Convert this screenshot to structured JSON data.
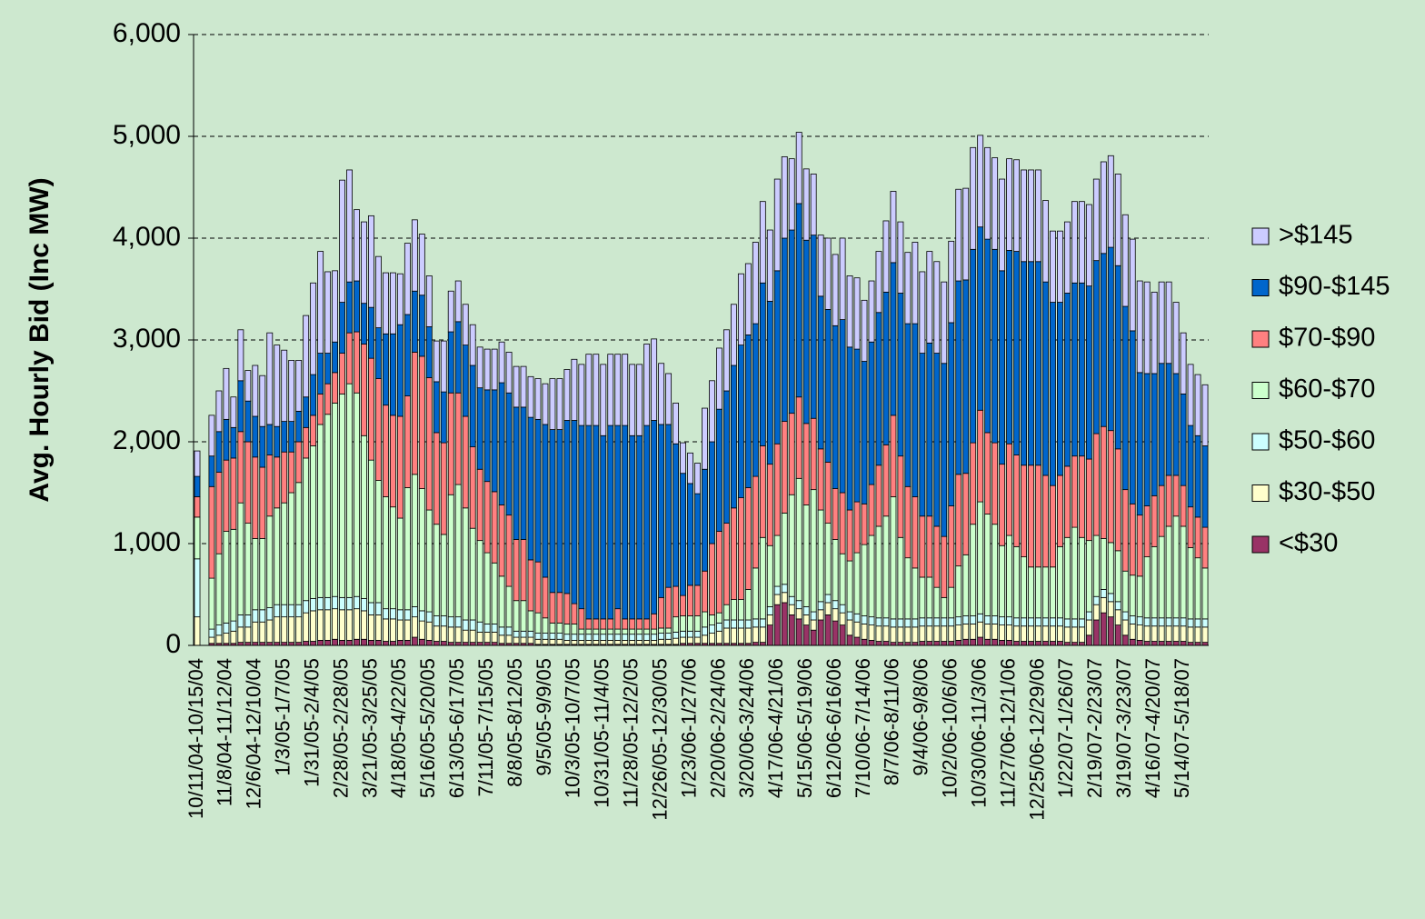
{
  "chart_data": {
    "type": "stacked_bar",
    "y_label": "Avg. Hourly Bid (Inc MW)",
    "ylim": [
      0,
      6000
    ],
    "yticks": [
      0,
      {
        "value": 1000,
        "label": "1,000"
      },
      {
        "value": 2000,
        "label": "2,000"
      },
      {
        "value": 3000,
        "label": "3,000"
      },
      {
        "value": 4000,
        "label": "4,000"
      },
      {
        "value": 5000,
        "label": "5,000"
      },
      {
        "value": 6000,
        "label": "6,000"
      }
    ],
    "grid": true,
    "legend": "right",
    "categories": [
      "10/11/04-10/15/04",
      null,
      null,
      null,
      "11/8/04-11/12/04",
      null,
      null,
      null,
      "12/6/04-12/10/04",
      null,
      null,
      null,
      "1/3/05-1/7/05",
      null,
      null,
      null,
      "1/31/05-2/4/05",
      null,
      null,
      null,
      "2/28/05-2/28/05",
      null,
      null,
      null,
      "3/21/05-3/25/05",
      null,
      null,
      null,
      "4/18/05-4/22/05",
      null,
      null,
      null,
      "5/16/05-5/20/05",
      null,
      null,
      null,
      "6/13/05-6/17/05",
      null,
      null,
      null,
      "7/11/05-7/15/05",
      null,
      null,
      null,
      "8/8/05-8/12/05",
      null,
      null,
      null,
      "9/5/05-9/9/05",
      null,
      null,
      null,
      "10/3/05-10/7/05",
      null,
      null,
      null,
      "10/31/05-11/4/05",
      null,
      null,
      null,
      "11/28/05-12/2/05",
      null,
      null,
      null,
      "12/26/05-12/30/05",
      null,
      null,
      null,
      "1/23/06-1/27/06",
      null,
      null,
      null,
      "2/20/06-2/24/06",
      null,
      null,
      null,
      "3/20/06-3/24/06",
      null,
      null,
      null,
      "4/17/06-4/21/06",
      null,
      null,
      null,
      "5/15/06-5/19/06",
      null,
      null,
      null,
      "6/12/06-6/16/06",
      null,
      null,
      null,
      "7/10/06-7/14/06",
      null,
      null,
      null,
      "8/7/06-8/11/06",
      null,
      null,
      null,
      "9/4/06-9/8/06",
      null,
      null,
      null,
      "10/2/06-10/6/06",
      null,
      null,
      null,
      "10/30/06-11/3/06",
      null,
      null,
      null,
      "11/27/06-12/1/06",
      null,
      null,
      null,
      "12/25/06-12/29/06",
      null,
      null,
      null,
      "1/22/07-1/26/07",
      null,
      null,
      null,
      "2/19/07-2/23/07",
      null,
      null,
      null,
      "3/19/07-3/23/07",
      null,
      null,
      null,
      "4/16/07-4/20/07",
      null,
      null,
      null,
      "5/14/07-5/18/07",
      null,
      null,
      null
    ],
    "series": [
      {
        "name": "<$30",
        "color": "#993366",
        "values": [
          0,
          0,
          20,
          20,
          20,
          20,
          30,
          30,
          30,
          30,
          30,
          30,
          30,
          30,
          30,
          40,
          40,
          50,
          50,
          60,
          50,
          50,
          60,
          60,
          50,
          50,
          40,
          40,
          50,
          50,
          80,
          60,
          50,
          40,
          40,
          30,
          30,
          30,
          30,
          30,
          30,
          30,
          20,
          20,
          20,
          20,
          20,
          10,
          10,
          10,
          10,
          10,
          10,
          10,
          10,
          10,
          10,
          10,
          10,
          10,
          10,
          10,
          10,
          10,
          10,
          10,
          10,
          20,
          20,
          20,
          20,
          20,
          20,
          20,
          20,
          20,
          20,
          30,
          30,
          200,
          400,
          420,
          300,
          260,
          200,
          150,
          250,
          300,
          240,
          200,
          100,
          80,
          60,
          50,
          40,
          40,
          30,
          30,
          30,
          30,
          40,
          40,
          40,
          40,
          40,
          50,
          60,
          60,
          80,
          60,
          60,
          50,
          50,
          40,
          40,
          40,
          40,
          40,
          40,
          40,
          30,
          30,
          30,
          100,
          250,
          320,
          280,
          200,
          100,
          60,
          50,
          40,
          40,
          40,
          40,
          40,
          40,
          30,
          30,
          30
        ]
      },
      {
        "name": "$30-$50",
        "color": "#ffffcc",
        "values": [
          280,
          0,
          60,
          80,
          100,
          120,
          150,
          150,
          200,
          200,
          220,
          250,
          250,
          250,
          250,
          280,
          300,
          300,
          300,
          300,
          300,
          300,
          300,
          280,
          250,
          250,
          220,
          220,
          200,
          200,
          200,
          180,
          180,
          150,
          150,
          150,
          150,
          120,
          120,
          100,
          100,
          100,
          80,
          80,
          60,
          60,
          60,
          50,
          50,
          50,
          50,
          40,
          40,
          40,
          40,
          40,
          40,
          40,
          40,
          40,
          40,
          40,
          40,
          40,
          50,
          50,
          60,
          60,
          60,
          60,
          80,
          100,
          120,
          150,
          150,
          150,
          150,
          150,
          150,
          100,
          100,
          100,
          100,
          100,
          100,
          100,
          100,
          120,
          120,
          120,
          150,
          150,
          150,
          150,
          150,
          150,
          150,
          150,
          150,
          150,
          150,
          150,
          150,
          150,
          150,
          150,
          150,
          150,
          150,
          150,
          150,
          150,
          150,
          150,
          150,
          150,
          150,
          150,
          150,
          150,
          150,
          150,
          150,
          150,
          150,
          150,
          150,
          150,
          150,
          150,
          150,
          150,
          150,
          150,
          150,
          150,
          150,
          150,
          150,
          150
        ]
      },
      {
        "name": "$50-$60",
        "color": "#ccffff",
        "values": [
          570,
          0,
          80,
          100,
          100,
          100,
          120,
          120,
          120,
          120,
          120,
          120,
          120,
          120,
          120,
          120,
          120,
          120,
          120,
          120,
          120,
          120,
          120,
          120,
          120,
          120,
          100,
          100,
          100,
          100,
          100,
          100,
          100,
          100,
          100,
          100,
          100,
          100,
          100,
          100,
          80,
          80,
          80,
          80,
          60,
          60,
          60,
          60,
          60,
          60,
          60,
          60,
          60,
          60,
          60,
          60,
          60,
          60,
          60,
          60,
          60,
          60,
          60,
          60,
          60,
          60,
          60,
          60,
          60,
          60,
          80,
          80,
          80,
          80,
          80,
          80,
          80,
          80,
          80,
          80,
          80,
          80,
          80,
          80,
          80,
          80,
          80,
          80,
          80,
          80,
          80,
          80,
          80,
          80,
          80,
          80,
          80,
          80,
          80,
          80,
          80,
          80,
          80,
          80,
          80,
          80,
          80,
          80,
          80,
          80,
          80,
          80,
          80,
          80,
          80,
          80,
          80,
          80,
          80,
          80,
          80,
          80,
          80,
          80,
          80,
          80,
          80,
          80,
          80,
          80,
          80,
          80,
          80,
          80,
          80,
          80,
          80,
          80,
          80,
          80
        ]
      },
      {
        "name": "$60-$70",
        "color": "#ccffcc",
        "values": [
          410,
          0,
          500,
          700,
          900,
          900,
          1100,
          900,
          700,
          700,
          900,
          950,
          1000,
          1100,
          1200,
          1400,
          1500,
          1700,
          1800,
          1900,
          2000,
          2100,
          2000,
          1600,
          1400,
          1200,
          1100,
          1000,
          900,
          1200,
          1300,
          1200,
          1000,
          900,
          800,
          1200,
          1300,
          1100,
          900,
          800,
          700,
          600,
          500,
          400,
          300,
          300,
          200,
          200,
          150,
          100,
          100,
          100,
          100,
          50,
          50,
          50,
          50,
          50,
          50,
          50,
          50,
          50,
          50,
          50,
          50,
          50,
          150,
          150,
          150,
          150,
          150,
          100,
          100,
          150,
          200,
          200,
          300,
          500,
          800,
          600,
          500,
          700,
          1000,
          1200,
          1000,
          1200,
          900,
          700,
          600,
          500,
          500,
          600,
          700,
          800,
          900,
          1000,
          1200,
          800,
          600,
          500,
          400,
          400,
          300,
          200,
          300,
          500,
          600,
          900,
          1100,
          1000,
          900,
          700,
          800,
          700,
          600,
          500,
          500,
          500,
          500,
          700,
          800,
          900,
          800,
          700,
          600,
          500,
          500,
          500,
          400,
          400,
          400,
          600,
          700,
          800,
          900,
          1000,
          900,
          700,
          600,
          500
        ]
      },
      {
        "name": "$70-$90",
        "color": "#ff8080",
        "values": [
          200,
          0,
          900,
          800,
          700,
          700,
          700,
          800,
          800,
          700,
          600,
          500,
          500,
          400,
          400,
          300,
          300,
          300,
          300,
          300,
          400,
          500,
          600,
          900,
          1000,
          1000,
          900,
          900,
          1000,
          900,
          1200,
          1300,
          1300,
          900,
          900,
          1000,
          900,
          900,
          800,
          700,
          700,
          700,
          700,
          700,
          600,
          600,
          500,
          500,
          400,
          300,
          300,
          300,
          200,
          200,
          100,
          100,
          100,
          100,
          200,
          100,
          100,
          100,
          100,
          150,
          300,
          400,
          300,
          200,
          300,
          300,
          400,
          700,
          800,
          800,
          900,
          1000,
          1000,
          900,
          900,
          800,
          900,
          900,
          800,
          800,
          800,
          700,
          600,
          600,
          500,
          600,
          500,
          500,
          400,
          500,
          600,
          700,
          800,
          800,
          700,
          700,
          600,
          600,
          600,
          600,
          800,
          900,
          800,
          800,
          900,
          800,
          800,
          800,
          900,
          900,
          900,
          1000,
          1000,
          900,
          800,
          700,
          700,
          700,
          800,
          800,
          1000,
          1100,
          1100,
          1000,
          800,
          700,
          600,
          500,
          500,
          500,
          500,
          400,
          400,
          400,
          400,
          400
        ]
      },
      {
        "name": "$90-$145",
        "color": "#0066cc",
        "values": [
          200,
          0,
          300,
          400,
          400,
          300,
          500,
          400,
          400,
          400,
          300,
          300,
          300,
          300,
          300,
          300,
          400,
          400,
          300,
          300,
          500,
          500,
          500,
          400,
          500,
          500,
          700,
          800,
          900,
          800,
          600,
          600,
          500,
          500,
          500,
          600,
          700,
          700,
          800,
          800,
          900,
          1000,
          1200,
          1200,
          1300,
          1300,
          1400,
          1400,
          1500,
          1600,
          1600,
          1700,
          1800,
          1800,
          1900,
          1900,
          1800,
          1900,
          1800,
          1900,
          1800,
          1800,
          1900,
          1900,
          1700,
          1600,
          1400,
          1200,
          1000,
          900,
          1000,
          1000,
          1200,
          1300,
          1400,
          1500,
          1500,
          1500,
          1600,
          1600,
          1700,
          1800,
          1800,
          1900,
          1800,
          1800,
          1500,
          1500,
          1600,
          1700,
          1600,
          1500,
          1400,
          1400,
          1500,
          1500,
          1500,
          1600,
          1600,
          1700,
          1600,
          1700,
          1700,
          1700,
          1800,
          1900,
          1900,
          1900,
          1800,
          1900,
          1900,
          1900,
          1900,
          2000,
          2000,
          2000,
          2000,
          1900,
          1800,
          1700,
          1700,
          1700,
          1700,
          1700,
          1700,
          1700,
          1800,
          1800,
          1800,
          1700,
          1400,
          1300,
          1200,
          1200,
          1100,
          1000,
          900,
          800,
          800,
          800
        ]
      },
      {
        "name": ">$145",
        "color": "#ccccff",
        "values": [
          250,
          0,
          400,
          400,
          500,
          300,
          500,
          300,
          500,
          500,
          900,
          800,
          700,
          600,
          500,
          800,
          900,
          1000,
          800,
          700,
          1200,
          1100,
          700,
          800,
          900,
          700,
          600,
          600,
          500,
          700,
          700,
          600,
          500,
          400,
          500,
          400,
          400,
          400,
          400,
          400,
          400,
          400,
          400,
          400,
          400,
          400,
          400,
          400,
          400,
          500,
          500,
          500,
          600,
          600,
          700,
          700,
          700,
          700,
          700,
          700,
          700,
          700,
          800,
          800,
          600,
          500,
          400,
          300,
          300,
          300,
          600,
          600,
          600,
          600,
          600,
          700,
          700,
          800,
          800,
          700,
          900,
          800,
          700,
          700,
          700,
          600,
          600,
          700,
          700,
          800,
          700,
          700,
          600,
          600,
          600,
          700,
          700,
          700,
          700,
          800,
          800,
          900,
          900,
          800,
          800,
          900,
          900,
          1000,
          900,
          900,
          900,
          900,
          900,
          900,
          900,
          900,
          900,
          800,
          700,
          700,
          700,
          800,
          800,
          800,
          800,
          900,
          900,
          900,
          900,
          900,
          900,
          900,
          800,
          800,
          800,
          700,
          600,
          600,
          600,
          600
        ]
      }
    ]
  }
}
